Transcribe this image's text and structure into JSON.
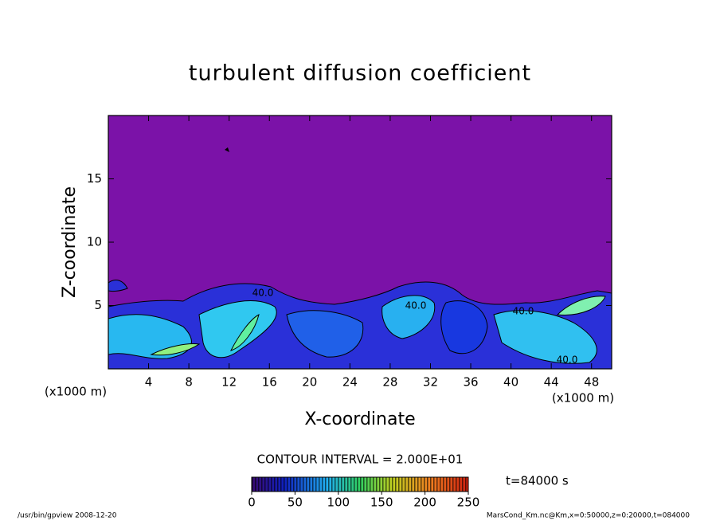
{
  "chart_data": {
    "type": "contour",
    "title": "turbulent diffusion coefficient",
    "x_label": "X-coordinate",
    "y_label": "Z-coordinate",
    "x_unit_labels": [
      "(x1000 m)",
      "(x1000 m)"
    ],
    "xlim": [
      0,
      50
    ],
    "xticks": [
      4,
      8,
      12,
      16,
      20,
      24,
      28,
      32,
      36,
      40,
      44,
      48
    ],
    "ylim": [
      0,
      20
    ],
    "yticks": [
      5,
      10,
      15
    ],
    "contour_interval": "CONTOUR INTERVAL = 2.000E+01",
    "contour_labels": [
      "40.0",
      "40.0",
      "40.0",
      "40.0"
    ],
    "colorbar_lim": [
      0,
      250
    ],
    "colorbar_ticks": [
      0,
      50,
      100,
      150,
      200,
      250
    ],
    "time_label": "t=84000 s",
    "footer_left": "/usr/bin/gpview   2008-12-20",
    "footer_right": "MarsCond_Km.nc@Km,x=0:50000,z=0:20000,t=084000"
  }
}
